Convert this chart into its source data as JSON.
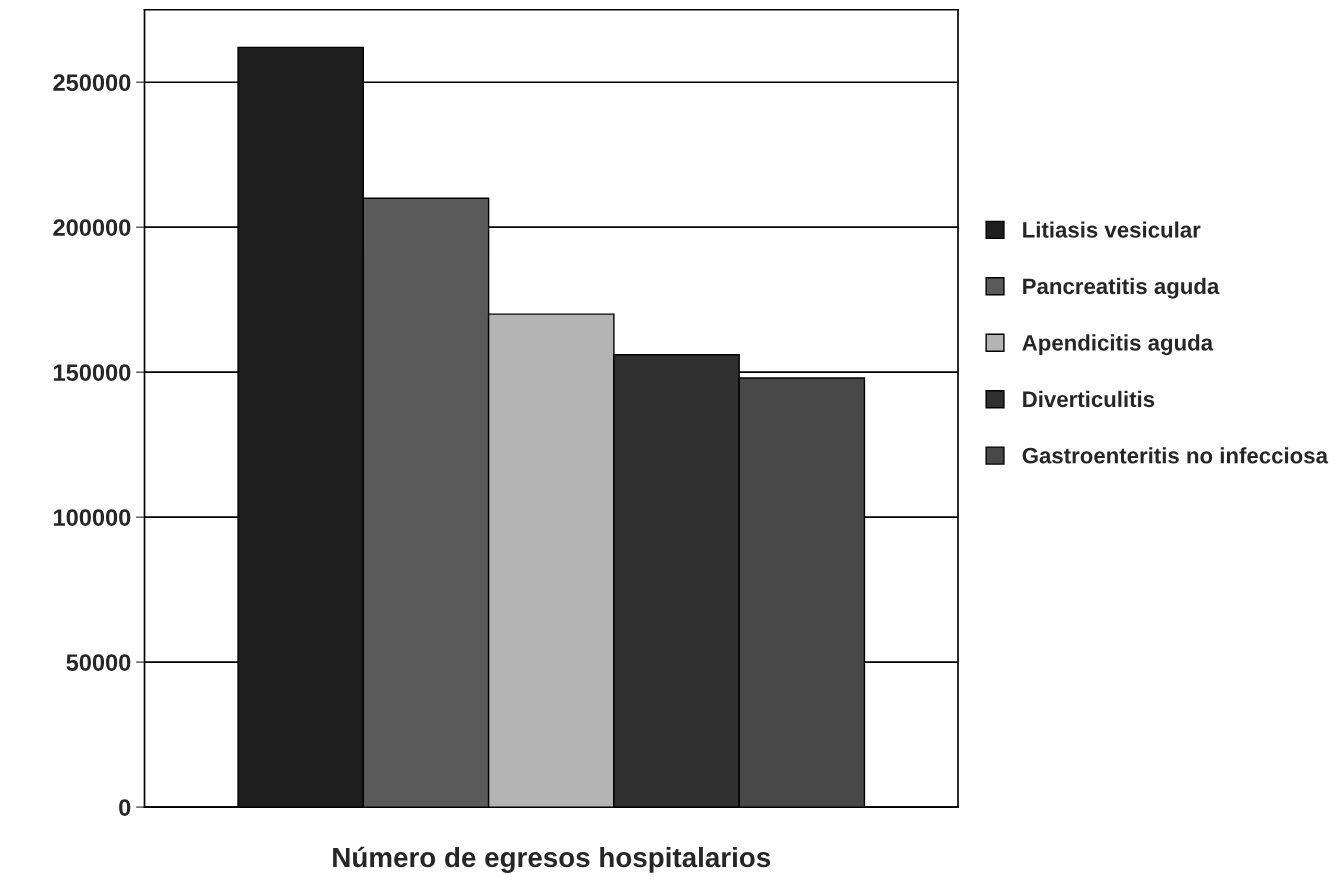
{
  "chart_data": {
    "type": "bar",
    "xlabel": "Número de egresos hospitalarios",
    "categories": [
      null
    ],
    "series": [
      {
        "name": "Litiasis vesicular",
        "color": "#1e1e1e",
        "values": [
          262000
        ]
      },
      {
        "name": "Pancreatitis aguda",
        "color": "#5a5a5a",
        "values": [
          210000
        ]
      },
      {
        "name": "Apendicitis aguda",
        "color": "#b4b4b4",
        "values": [
          170000
        ]
      },
      {
        "name": "Diverticulitis",
        "color": "#303030",
        "values": [
          156000
        ]
      },
      {
        "name": "Gastroenteritis no infecciosa",
        "color": "#484848",
        "values": [
          148000
        ]
      }
    ],
    "ylim": [
      0,
      275000
    ],
    "yticks": [
      0,
      50000,
      100000,
      150000,
      200000,
      250000
    ],
    "grid": "y",
    "legend": "right"
  }
}
